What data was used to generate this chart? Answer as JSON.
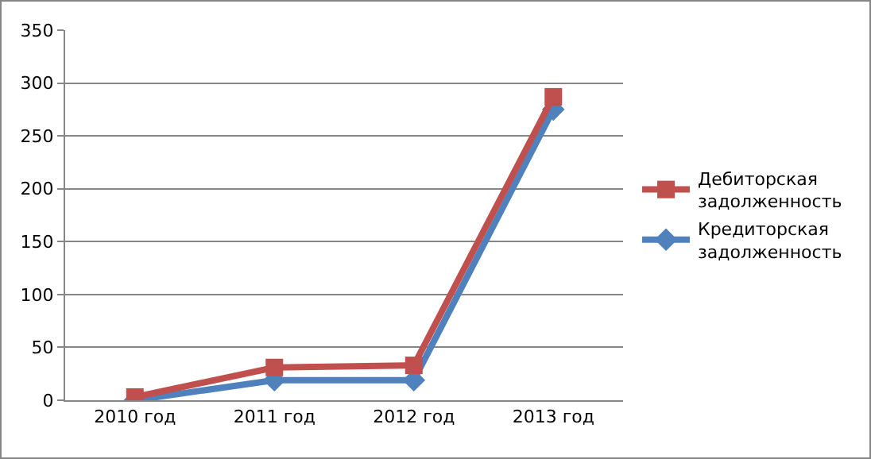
{
  "chart_data": {
    "type": "line",
    "categories": [
      "2010 год",
      "2011 год",
      "2012 год",
      "2013 год"
    ],
    "series": [
      {
        "name": "Дебиторская задолженность",
        "color": "#c0504d",
        "marker": "square",
        "values": [
          3,
          31,
          33,
          287
        ]
      },
      {
        "name": "Кредиторская задолженность",
        "color": "#4f81bd",
        "marker": "diamond",
        "values": [
          0,
          19,
          19,
          275
        ]
      }
    ],
    "ylim": [
      0,
      350
    ],
    "yticks": [
      0,
      50,
      100,
      150,
      200,
      250,
      300,
      350
    ],
    "grid": "y",
    "legend": "right"
  }
}
